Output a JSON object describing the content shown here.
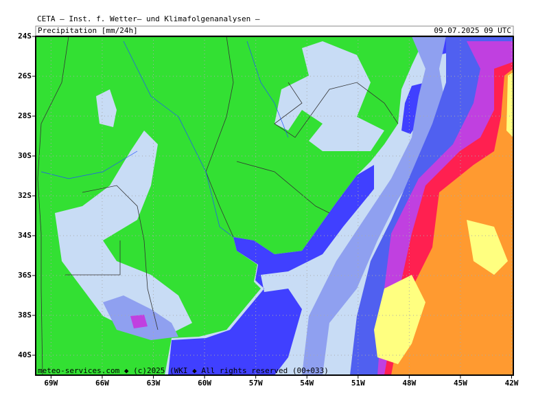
{
  "map": {
    "title": "CETA – Inst. f. Wetter– und Klimafolgenanalysen –",
    "subtitle": "Precipitation [mm/24h]",
    "valid_time": "09.07.2025 09 UTC",
    "credit": "meteo-services.com ◆ (c)2025 (WKI ◆ All rights reserved (00+033)",
    "xlim": [
      -69.9,
      -41.9
    ],
    "ylim": [
      -41,
      -24
    ],
    "xticks": [
      {
        "value": -69,
        "label": "69W"
      },
      {
        "value": -66,
        "label": "66W"
      },
      {
        "value": -63,
        "label": "63W"
      },
      {
        "value": -60,
        "label": "60W"
      },
      {
        "value": -57,
        "label": "57W"
      },
      {
        "value": -54,
        "label": "54W"
      },
      {
        "value": -51,
        "label": "51W"
      },
      {
        "value": -48,
        "label": "48W"
      },
      {
        "value": -45,
        "label": "45W"
      },
      {
        "value": -42,
        "label": "42W"
      }
    ],
    "yticks": [
      {
        "value": -24,
        "label": "24S"
      },
      {
        "value": -26,
        "label": "26S"
      },
      {
        "value": -28,
        "label": "28S"
      },
      {
        "value": -30,
        "label": "30S"
      },
      {
        "value": -32,
        "label": "32S"
      },
      {
        "value": -34,
        "label": "34S"
      },
      {
        "value": -36,
        "label": "36S"
      },
      {
        "value": -38,
        "label": "38S"
      },
      {
        "value": -40,
        "label": "40S"
      }
    ],
    "grid": true
  }
}
